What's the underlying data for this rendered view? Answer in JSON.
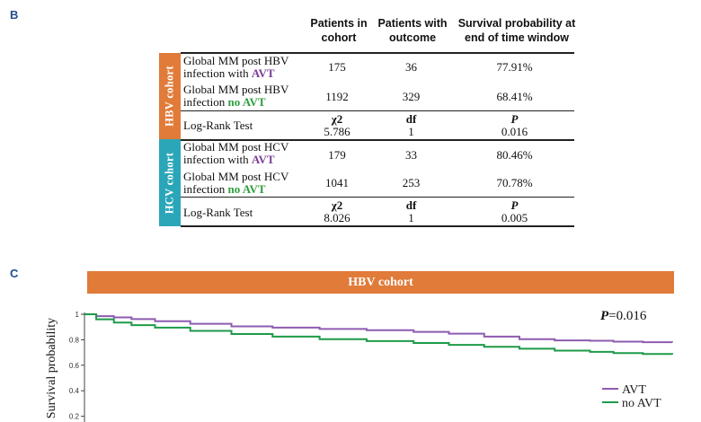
{
  "panel_b": {
    "letter": "B",
    "headers": {
      "patients": "Patients in cohort",
      "outcome": "Patients with outcome",
      "survival": "Survival probability at end of time window"
    },
    "hbv": {
      "side_label": "HBV cohort",
      "side_color": "#e07b39",
      "row1": {
        "line1": "Global MM post HBV",
        "line2": "infection with ",
        "tag": "AVT",
        "patients": "175",
        "outcome": "36",
        "survival": "77.91%"
      },
      "row2": {
        "line1": "Global MM post HBV",
        "line2": "infection ",
        "tag": "no AVT",
        "patients": "1192",
        "outcome": "329",
        "survival": "68.41%"
      },
      "test": {
        "label": "Log-Rank Test",
        "stat_label": "χ2",
        "stat_value": "5.786",
        "df_label": "df",
        "df_value": "1",
        "p_label": "P",
        "p_value": "0.016"
      }
    },
    "hcv": {
      "side_label": "HCV cohort",
      "side_color": "#2aa6b8",
      "row1": {
        "line1": "Global MM post HCV",
        "line2": "infection with ",
        "tag": "AVT",
        "patients": "179",
        "outcome": "33",
        "survival": "80.46%"
      },
      "row2": {
        "line1": "Global MM post HCV",
        "line2": "infection ",
        "tag": "no AVT",
        "patients": "1041",
        "outcome": "253",
        "survival": "70.78%"
      },
      "test": {
        "label": "Log-Rank Test",
        "stat_label": "χ2",
        "stat_value": "8.026",
        "df_label": "df",
        "df_value": "1",
        "p_label": "P",
        "p_value": "0.005"
      }
    }
  },
  "panel_c": {
    "letter": "C",
    "banner": "HBV cohort",
    "banner_color": "#e07b39",
    "p_label": "P",
    "p_text": "=0.016",
    "ylabel": "Survival probability"
  },
  "chart_data": {
    "type": "line",
    "title": "HBV cohort",
    "ylabel": "Survival probability",
    "ylim": [
      0.2,
      1
    ],
    "yticks": [
      "1",
      "0.8",
      "0.6",
      "0.4",
      "0.2"
    ],
    "legend_placement": "bottom-right",
    "series": [
      {
        "name": "AVT",
        "color": "#8e5bb0",
        "x": [
          0,
          0.02,
          0.05,
          0.08,
          0.12,
          0.18,
          0.25,
          0.32,
          0.4,
          0.48,
          0.56,
          0.62,
          0.68,
          0.74,
          0.8,
          0.86,
          0.9,
          0.95,
          1.0
        ],
        "y": [
          1.0,
          0.985,
          0.975,
          0.962,
          0.945,
          0.925,
          0.905,
          0.895,
          0.885,
          0.875,
          0.862,
          0.848,
          0.825,
          0.805,
          0.795,
          0.792,
          0.785,
          0.781,
          0.779
        ]
      },
      {
        "name": "no AVT",
        "color": "#1e9a48",
        "x": [
          0,
          0.02,
          0.05,
          0.08,
          0.12,
          0.18,
          0.25,
          0.32,
          0.4,
          0.48,
          0.56,
          0.62,
          0.68,
          0.74,
          0.8,
          0.86,
          0.9,
          0.95,
          1.0
        ],
        "y": [
          1.0,
          0.96,
          0.935,
          0.915,
          0.895,
          0.87,
          0.845,
          0.825,
          0.805,
          0.79,
          0.775,
          0.76,
          0.745,
          0.73,
          0.715,
          0.705,
          0.695,
          0.688,
          0.684
        ]
      }
    ]
  }
}
